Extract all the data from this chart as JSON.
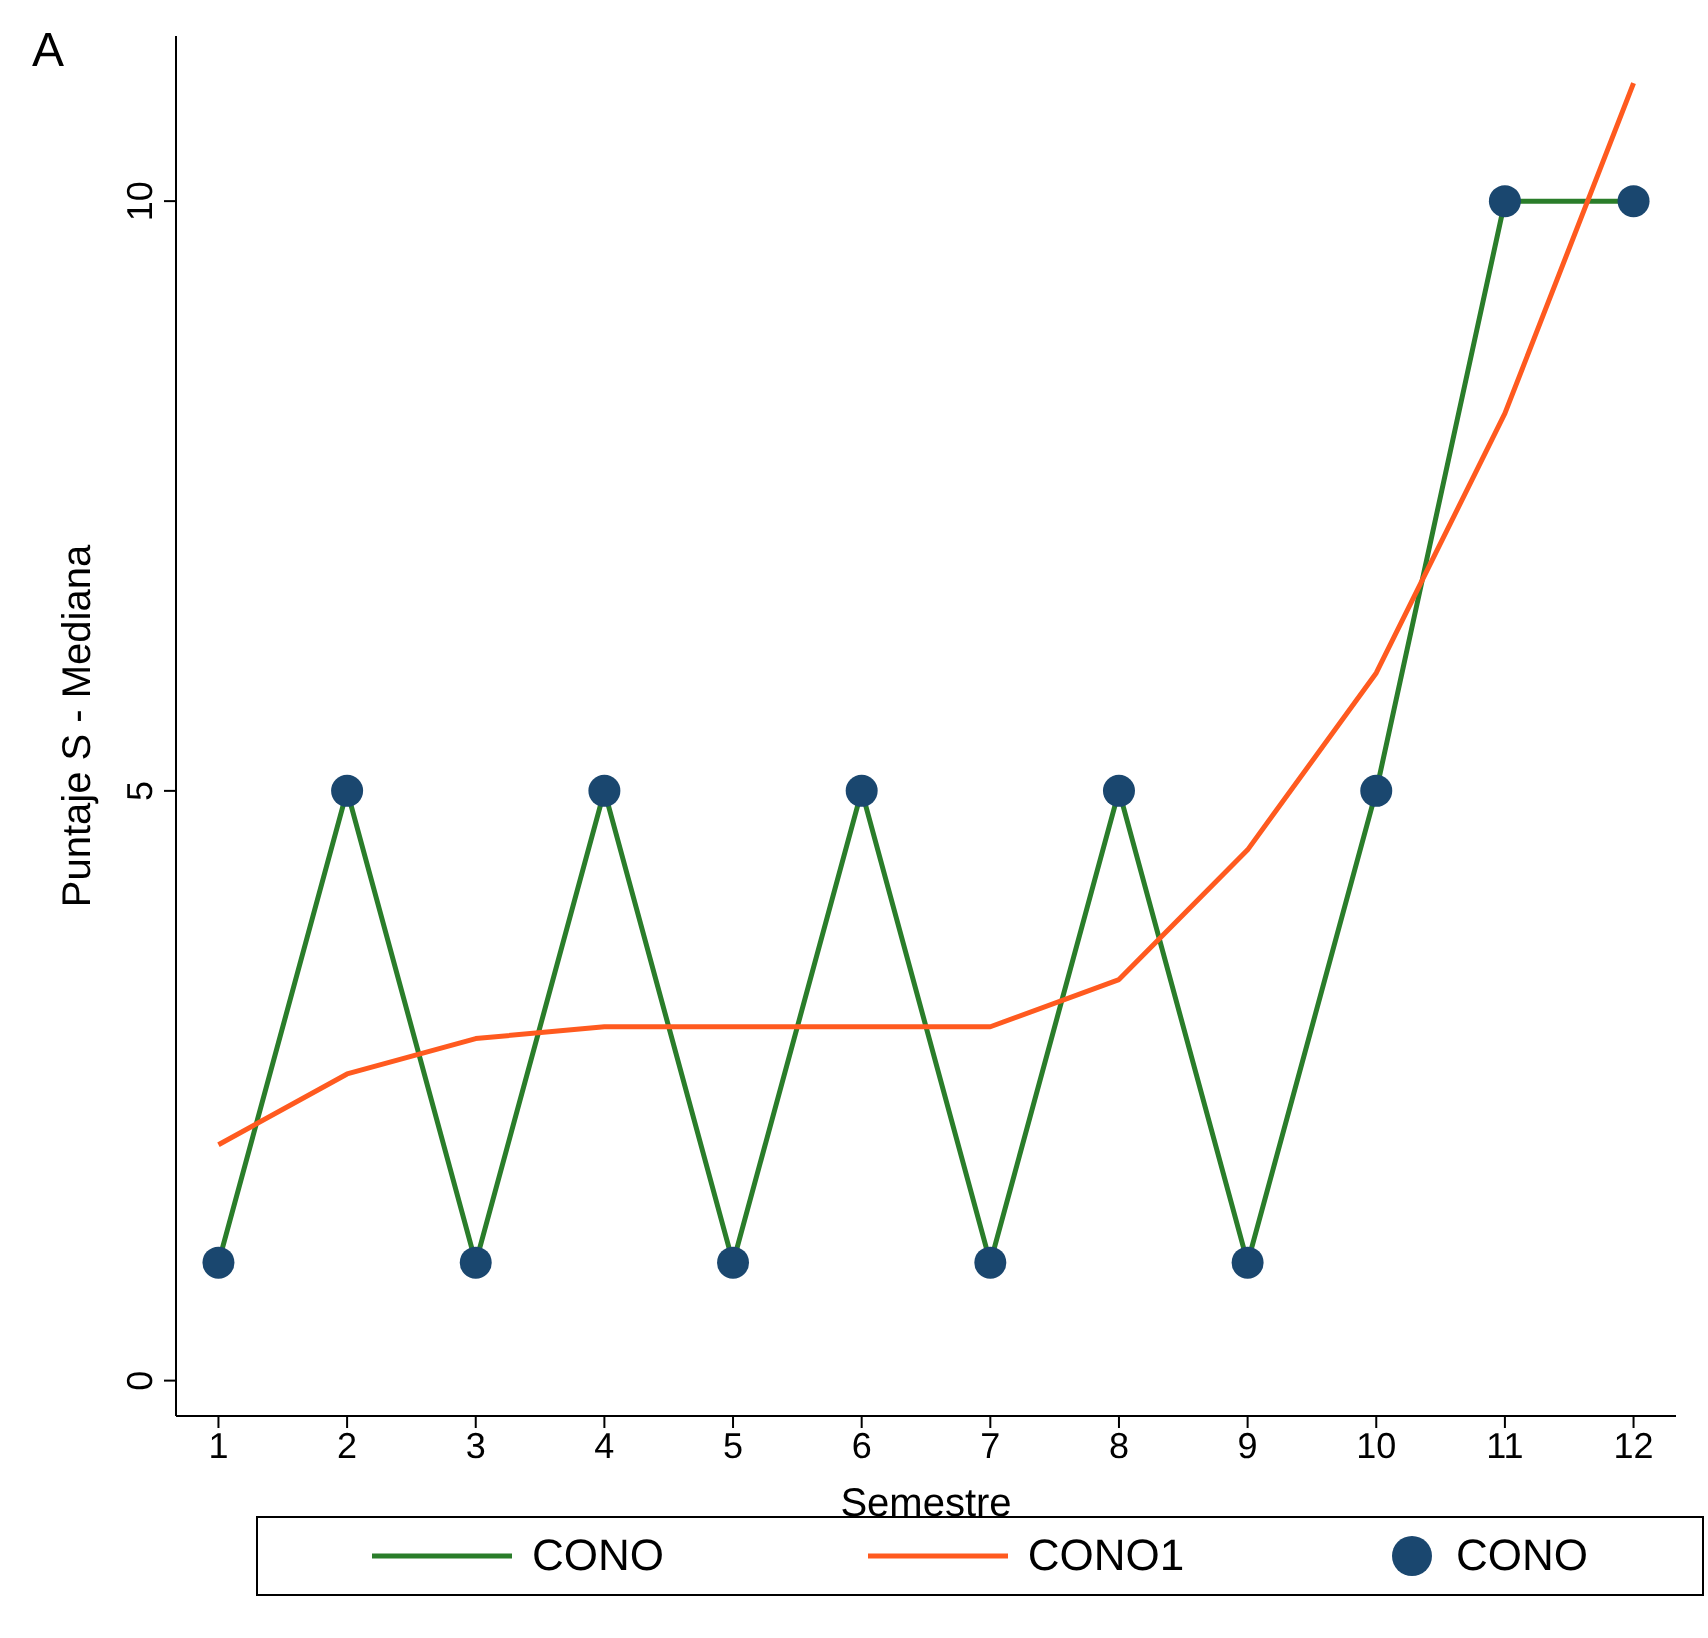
{
  "chart_data": {
    "type": "line",
    "title": "A",
    "xlabel": "Semestre",
    "ylabel": "Puntaje S - Mediana",
    "x": [
      1,
      2,
      3,
      4,
      5,
      6,
      7,
      8,
      9,
      10,
      11,
      12
    ],
    "series": [
      {
        "name": "CONO",
        "type": "line",
        "color": "#2a7d2a",
        "marker": "none",
        "values": [
          1,
          5,
          1,
          5,
          1,
          5,
          1,
          5,
          1,
          5,
          10,
          10
        ]
      },
      {
        "name": "CONO1",
        "type": "line",
        "color": "#ff5a1f",
        "marker": "none",
        "values": [
          2.0,
          2.6,
          2.9,
          3.0,
          3.0,
          3.0,
          3.0,
          3.4,
          4.5,
          6.0,
          8.2,
          11.0
        ]
      },
      {
        "name": "CONO",
        "type": "scatter",
        "color": "#1a476f",
        "marker": "circle",
        "values": [
          1,
          5,
          1,
          5,
          1,
          5,
          1,
          5,
          1,
          5,
          10,
          10
        ]
      }
    ],
    "xlim": [
      0.67,
      12.33
    ],
    "xticks": [
      1,
      2,
      3,
      4,
      5,
      6,
      7,
      8,
      9,
      10,
      11,
      12
    ],
    "ylim": [
      -0.3,
      11.4
    ],
    "yticks": [
      0,
      5,
      10
    ],
    "grid": false,
    "legend": "bottom"
  }
}
